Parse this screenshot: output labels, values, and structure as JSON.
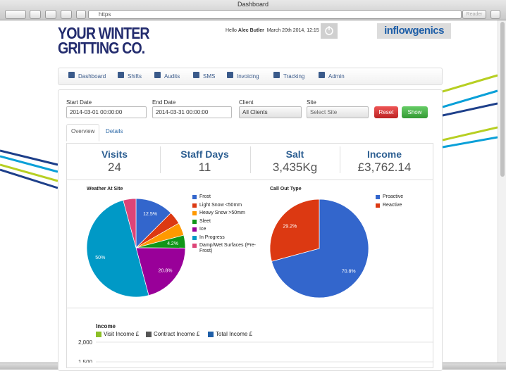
{
  "browser": {
    "title": "Dashboard",
    "url": "https",
    "reader": "Reader"
  },
  "header": {
    "logo_line1": "YOUR WINTER",
    "logo_line2": "GRITTING CO.",
    "greeting": "Hello",
    "user": "Alec Butler",
    "datetime": "March 20th 2014, 12:15",
    "brand": "inflowgenics"
  },
  "nav": [
    "Dashboard",
    "Shifts",
    "Audits",
    "SMS",
    "Invoicing",
    "Tracking",
    "Admin"
  ],
  "filters": {
    "start_date": {
      "label": "Start Date",
      "value": "2014-03-01 00:00:00"
    },
    "end_date": {
      "label": "End Date",
      "value": "2014-03-31 00:00:00"
    },
    "client": {
      "label": "Client",
      "value": "All Clients"
    },
    "site": {
      "label": "Site",
      "value": "Select Site"
    },
    "reset": "Reset",
    "show": "Show"
  },
  "tabs": [
    "Overview",
    "Details"
  ],
  "stats": [
    {
      "label": "Visits",
      "value": 24
    },
    {
      "label": "Staff Days",
      "value": 11
    },
    {
      "label": "Salt",
      "value": "3,435Kg"
    },
    {
      "label": "Income",
      "value": "£3,762.14"
    }
  ],
  "chart_data": [
    {
      "type": "pie",
      "title": "Weather At Site",
      "categories": [
        "Frost",
        "Light Snow <50mm",
        "Heavy Snow >50mm",
        "Sleet",
        "Ice",
        "In Progress",
        "Damp/Wet Surfaces (Pre-Frost)"
      ],
      "values": [
        12.5,
        4.2,
        4.2,
        4.2,
        20.8,
        50,
        4.2
      ],
      "value_labels": [
        "12.5%",
        null,
        null,
        "4.2%",
        "20.8%",
        "50%",
        null
      ],
      "colors": [
        "#3366cc",
        "#dc3912",
        "#ff9900",
        "#109618",
        "#990099",
        "#0099c6",
        "#dd4477"
      ],
      "legend": "right"
    },
    {
      "type": "pie",
      "title": "Call Out Type",
      "categories": [
        "Proactive",
        "Reactive"
      ],
      "values": [
        70.8,
        29.2
      ],
      "value_labels": [
        "70.8%",
        "29.2%"
      ],
      "colors": [
        "#3366cc",
        "#dc3912"
      ],
      "legend": "right"
    },
    {
      "type": "line",
      "title": "Income",
      "series": [
        {
          "name": "Visit Income £",
          "color": "#8cbf26"
        },
        {
          "name": "Contract Income £",
          "color": "#555555"
        },
        {
          "name": "Total Income £",
          "color": "#1f5fa8"
        }
      ],
      "ylim": [
        0,
        2000
      ],
      "yticks": [
        {
          "value": 2000,
          "label": "2,000"
        },
        {
          "value": 1500,
          "label": "1,500"
        }
      ],
      "grid": true,
      "legend": "top"
    }
  ]
}
